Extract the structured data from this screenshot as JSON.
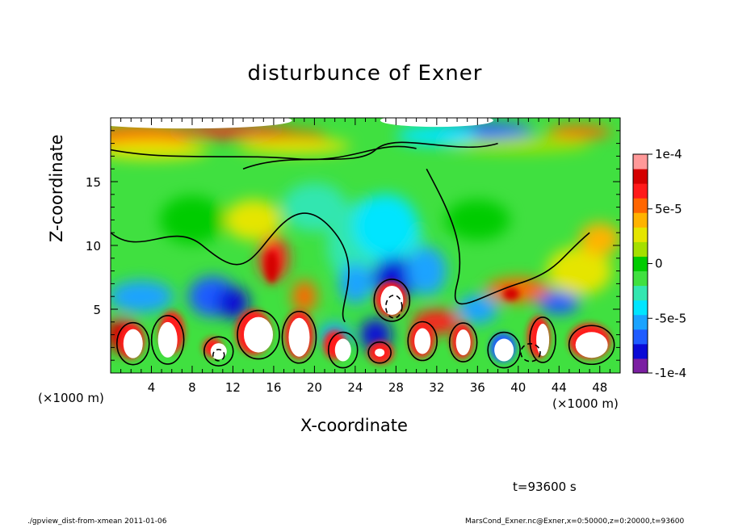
{
  "chart_data": {
    "type": "heatmap",
    "title": "disturbunce of Exner",
    "xlabel": "X-coordinate",
    "ylabel": "Z-coordinate",
    "x_unit": "(×1000 m)",
    "x_unit_right": "(×1000 m)",
    "xlim": [
      0,
      50
    ],
    "ylim": [
      0,
      20
    ],
    "x_ticks": [
      4,
      8,
      12,
      16,
      20,
      24,
      28,
      32,
      36,
      40,
      44,
      48
    ],
    "y_ticks": [
      5,
      10,
      15
    ],
    "colorbar": {
      "range": [
        -0.0001,
        0.0001
      ],
      "tick_values": [
        0.0001,
        5e-05,
        0,
        -5e-05,
        -0.0001
      ],
      "tick_labels": [
        "1e-4",
        "5e-5",
        "0",
        "-5e-5",
        "-1e-4"
      ],
      "colors": [
        "#7b1fa2",
        "#0a0ad6",
        "#1f5cff",
        "#1aa3ff",
        "#00e5ff",
        "#33e6b0",
        "#40e040",
        "#00cc00",
        "#a5e000",
        "#e5e500",
        "#ffb300",
        "#ff6600",
        "#ff1a1a",
        "#d40000",
        "#ff9999"
      ]
    },
    "time_label": "t=93600 s",
    "footer_left": "./gpview_dist-from-xmean  2011-01-06",
    "footer_right": "MarsCond_Exner.nc@Exner,x=0:50000,z=0:20000,t=93600"
  }
}
